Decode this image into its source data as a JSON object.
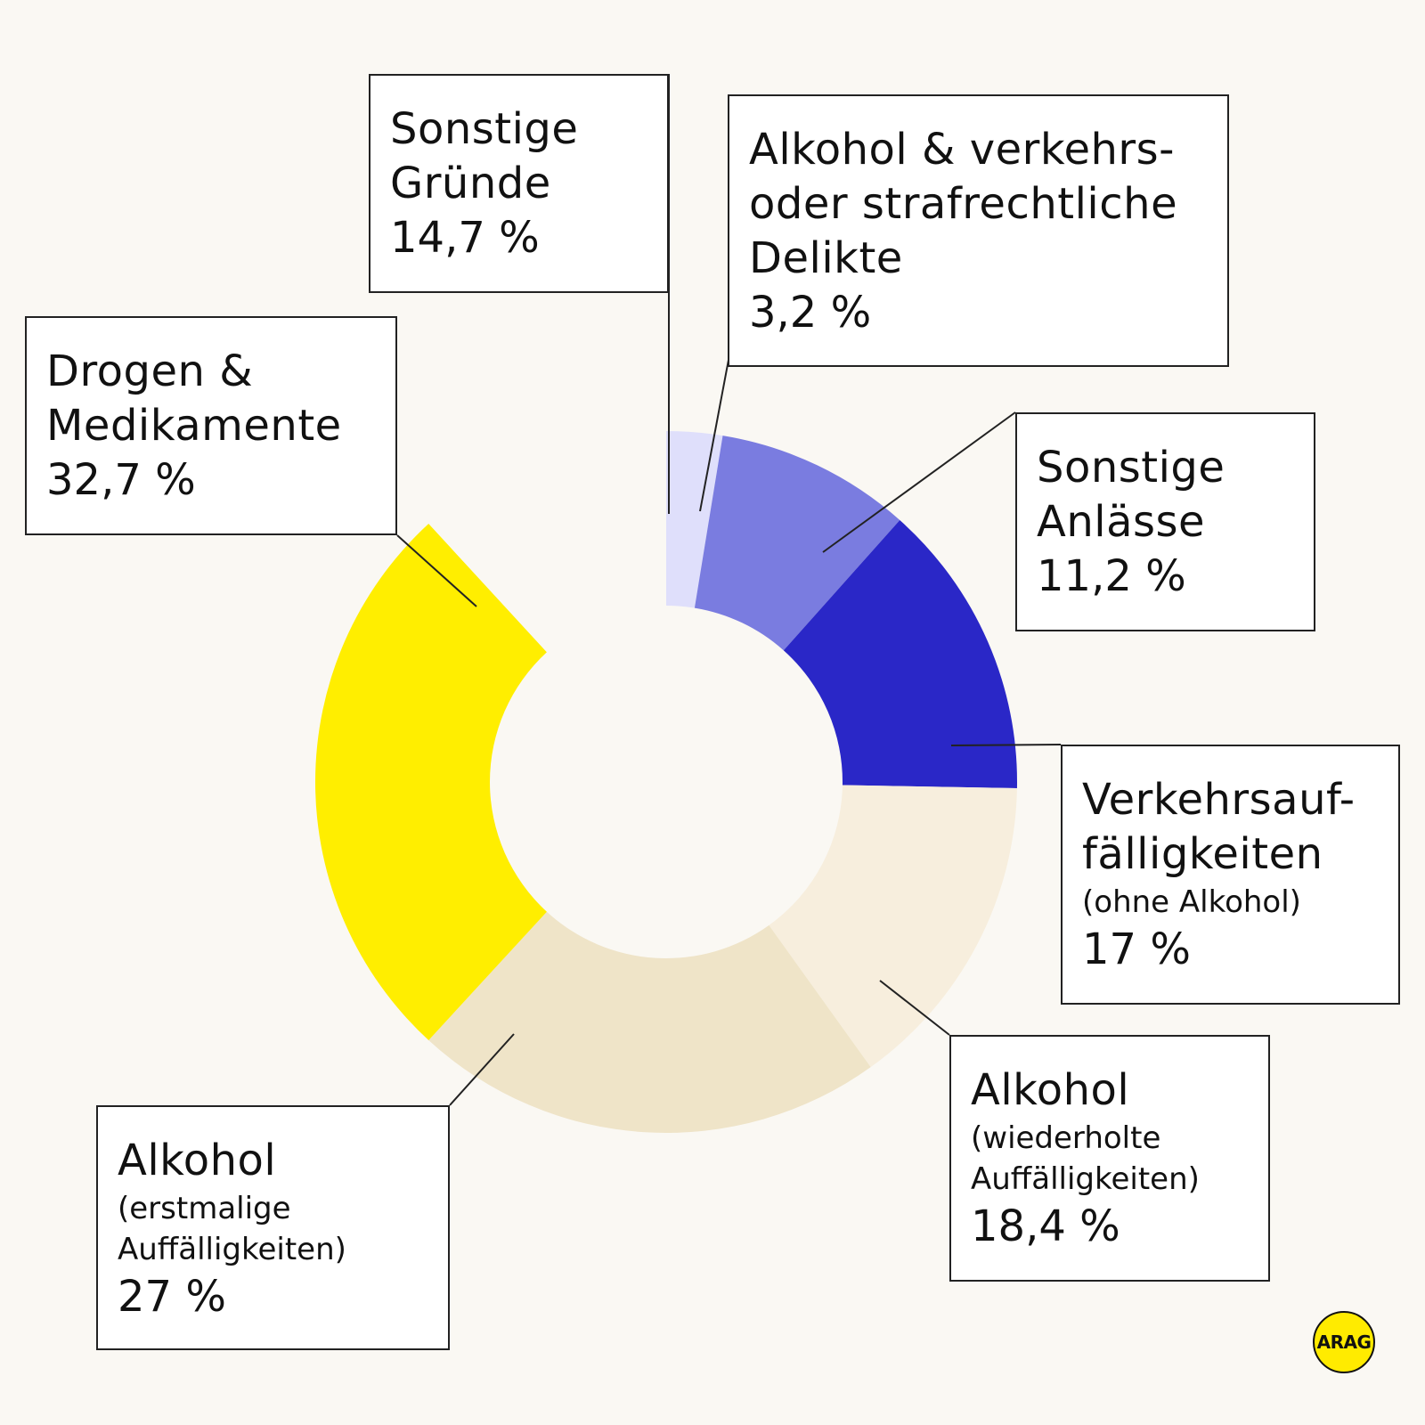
{
  "chart_data": {
    "type": "pie",
    "variant": "donut",
    "unit": "%",
    "slices": [
      {
        "name": "Alkohol & verkehrs- oder strafrechtliche Delikte",
        "value": 3.2,
        "color": "#dfdffb"
      },
      {
        "name": "Sonstige Anlässe",
        "value": 11.2,
        "color": "#7a7ce0"
      },
      {
        "name": "Verkehrsauffälligkeiten (ohne Alkohol)",
        "value": 17,
        "color": "#2a27c7"
      },
      {
        "name": "Alkohol (wiederholte Auffälligkeiten)",
        "value": 18.4,
        "color": "#f7eedd"
      },
      {
        "name": "Alkohol (erstmalige Auffälligkeiten)",
        "value": 27,
        "color": "#efe4c8"
      },
      {
        "name": "Drogen & Medikamente",
        "value": 32.7,
        "color": "#ffee00"
      },
      {
        "name": "Sonstige Gründe",
        "value": 14.7,
        "color": "#faf8f3"
      }
    ]
  },
  "labels": {
    "delikte": {
      "main": "Alkohol & verkehrs-\noder strafrechtliche\nDelikte",
      "value": "3,2 %"
    },
    "anlaesse": {
      "main": "Sonstige\nAnlässe",
      "value": "11,2 %"
    },
    "verkehr": {
      "main": "Verkehrsauf-\nfälligkeiten",
      "sub": "(ohne Alkohol)",
      "value": "17 %"
    },
    "wiederholt": {
      "main": "Alkohol",
      "sub": "(wiederholte\nAuffälligkeiten)",
      "value": "18,4 %"
    },
    "erstmalig": {
      "main": "Alkohol",
      "sub": "(erstmalige\nAuffälligkeiten)",
      "value": "27 %"
    },
    "drogen": {
      "main": "Drogen &\nMedikamente",
      "value": "32,7 %"
    },
    "gruende": {
      "main": "Sonstige\nGründe",
      "value": "14,7 %"
    }
  },
  "logo": {
    "text": "ARAG",
    "color": "#ffeb00"
  }
}
